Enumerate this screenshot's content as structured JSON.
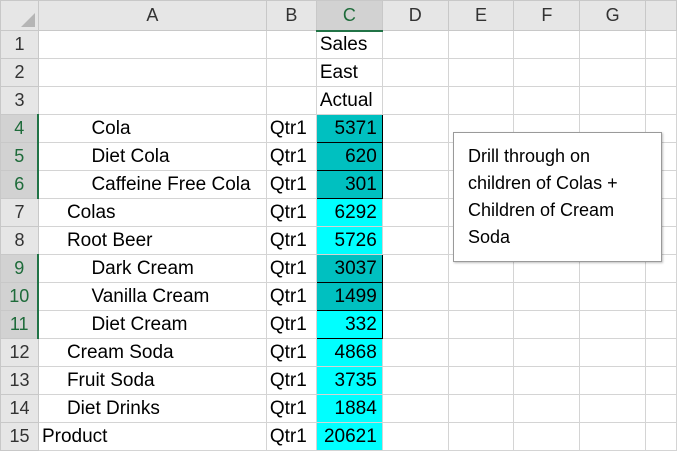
{
  "columns": [
    "A",
    "B",
    "C",
    "D",
    "E",
    "F",
    "G"
  ],
  "rows": [
    {
      "num": "1",
      "a": "",
      "b": "",
      "c": "Sales"
    },
    {
      "num": "2",
      "a": "",
      "b": "",
      "c": "East"
    },
    {
      "num": "3",
      "a": "",
      "b": "",
      "c": "Actual"
    },
    {
      "num": "4",
      "a": "Cola",
      "b": "Qtr1",
      "c": "5371"
    },
    {
      "num": "5",
      "a": "Diet Cola",
      "b": "Qtr1",
      "c": "620"
    },
    {
      "num": "6",
      "a": "Caffeine Free Cola",
      "b": "Qtr1",
      "c": "301"
    },
    {
      "num": "7",
      "a": "Colas",
      "b": "Qtr1",
      "c": "6292"
    },
    {
      "num": "8",
      "a": "Root Beer",
      "b": "Qtr1",
      "c": "5726"
    },
    {
      "num": "9",
      "a": "Dark Cream",
      "b": "Qtr1",
      "c": "3037"
    },
    {
      "num": "10",
      "a": "Vanilla Cream",
      "b": "Qtr1",
      "c": "1499"
    },
    {
      "num": "11",
      "a": "Diet Cream",
      "b": "Qtr1",
      "c": "332"
    },
    {
      "num": "12",
      "a": "Cream Soda",
      "b": "Qtr1",
      "c": "4868"
    },
    {
      "num": "13",
      "a": "Fruit Soda",
      "b": "Qtr1",
      "c": "3735"
    },
    {
      "num": "14",
      "a": "Diet Drinks",
      "b": "Qtr1",
      "c": "1884"
    },
    {
      "num": "15",
      "a": "Product",
      "b": "Qtr1",
      "c": "20621"
    }
  ],
  "note": {
    "lines": [
      "Drill through on",
      "children of Colas +",
      "Children of Cream",
      "Soda"
    ]
  },
  "colors": {
    "highlight_cyan": "#00ffff",
    "highlight_teal": "#00c0c0",
    "selection_accent": "#217346"
  }
}
